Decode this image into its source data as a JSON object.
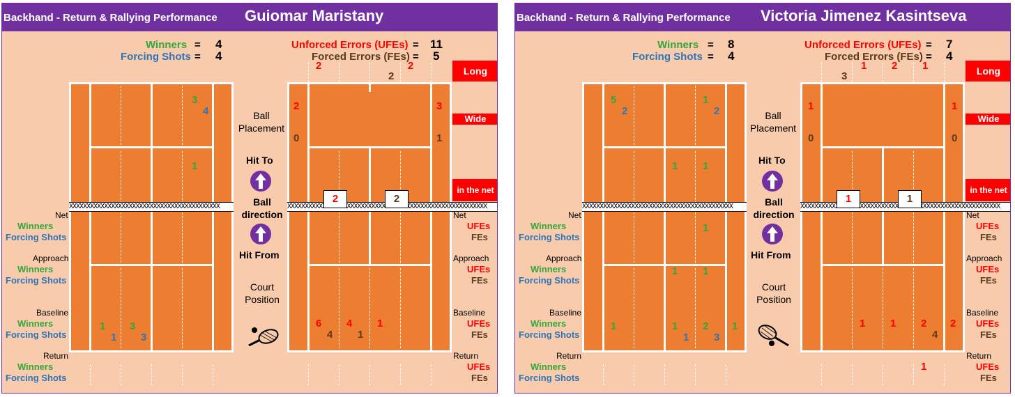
{
  "section_title": "Backhand - Return & Rallying Performance",
  "chart_data": [
    {
      "type": "table",
      "player": "Guiomar Maristany",
      "winners_label": "Winners",
      "winners": "4",
      "forcing_label": "Forcing Shots",
      "forcing": "4",
      "ufe_label": "Unforced Errors (UFEs)",
      "ufe": "11",
      "fe_label": "Forced Errors (FEs)",
      "fe": "5",
      "long_label": "Long",
      "wide_label": "Wide",
      "net_label": "in the net",
      "ball_placement": "Ball Placement",
      "hit_to": "Hit To",
      "ball_direction": "Ball direction",
      "hit_from": "Hit From",
      "court_position": "Court Position",
      "row_net": "Net",
      "row_approach": "Approach",
      "row_baseline": "Baseline",
      "row_return": "Return",
      "row_w": "Winners",
      "row_fs": "Forcing Shots",
      "row_ufe": "UFEs",
      "row_fe": "FEs",
      "left_placement": [
        {
          "v": "3",
          "c": "g"
        },
        {
          "v": "4",
          "c": "b"
        },
        {
          "v": "1",
          "c": "g"
        }
      ],
      "left_position": [
        {
          "v": "1",
          "c": "g"
        },
        {
          "v": "1",
          "c": "b"
        },
        {
          "v": "3",
          "c": "g"
        },
        {
          "v": "3",
          "c": "b"
        }
      ],
      "right_long": [
        {
          "v": "2",
          "c": "r"
        },
        {
          "v": "2",
          "c": "br"
        },
        {
          "v": "2",
          "c": "r"
        }
      ],
      "right_wide": [
        {
          "v": "2",
          "c": "r"
        },
        {
          "v": "0",
          "c": "br"
        },
        {
          "v": "3",
          "c": "r"
        },
        {
          "v": "1",
          "c": "br"
        }
      ],
      "right_net": [
        "2",
        "2"
      ],
      "right_position": [
        {
          "v": "6",
          "c": "r"
        },
        {
          "v": "4",
          "c": "br"
        },
        {
          "v": "4",
          "c": "r"
        },
        {
          "v": "1",
          "c": "br"
        },
        {
          "v": "1",
          "c": "r"
        }
      ]
    },
    {
      "type": "table",
      "player": "Victoria Jimenez Kasintseva",
      "winners_label": "Winners",
      "winners": "8",
      "forcing_label": "Forcing Shots",
      "forcing": "4",
      "ufe_label": "Unforced Errors (UFEs)",
      "ufe": "7",
      "fe_label": "Forced Errors (FEs)",
      "fe": "4",
      "long_label": "Long",
      "wide_label": "Wide",
      "net_label": "in the net",
      "ball_placement": "Ball Placement",
      "hit_to": "Hit To",
      "ball_direction": "Ball direction",
      "hit_from": "Hit From",
      "court_position": "Court Position",
      "row_net": "Net",
      "row_approach": "Approach",
      "row_baseline": "Baseline",
      "row_return": "Return",
      "row_w": "Winners",
      "row_fs": "Forcing Shots",
      "row_ufe": "UFEs",
      "row_fe": "FEs",
      "left_placement": [
        {
          "v": "5",
          "c": "g"
        },
        {
          "v": "2",
          "c": "b"
        },
        {
          "v": "1",
          "c": "g"
        },
        {
          "v": "2",
          "c": "b"
        },
        {
          "v": "1",
          "c": "g"
        },
        {
          "v": "1",
          "c": "g"
        },
        {
          "v": "1",
          "c": "g"
        },
        {
          "v": "1",
          "c": "g"
        },
        {
          "v": "1",
          "c": "g"
        }
      ],
      "left_position": [
        {
          "v": "1",
          "c": "g"
        },
        {
          "v": "1",
          "c": "g"
        },
        {
          "v": "1",
          "c": "b"
        },
        {
          "v": "2",
          "c": "g"
        },
        {
          "v": "3",
          "c": "b"
        },
        {
          "v": "1",
          "c": "g"
        }
      ],
      "right_long": [
        {
          "v": "3",
          "c": "br"
        },
        {
          "v": "1",
          "c": "r"
        },
        {
          "v": "2",
          "c": "r"
        },
        {
          "v": "1",
          "c": "r"
        }
      ],
      "right_wide": [
        {
          "v": "1",
          "c": "r"
        },
        {
          "v": "0",
          "c": "br"
        },
        {
          "v": "1",
          "c": "r"
        },
        {
          "v": "0",
          "c": "br"
        }
      ],
      "right_net": [
        "1",
        "1"
      ],
      "right_position": [
        {
          "v": "1",
          "c": "r"
        },
        {
          "v": "1",
          "c": "r"
        },
        {
          "v": "2",
          "c": "r"
        },
        {
          "v": "4",
          "c": "br"
        },
        {
          "v": "2",
          "c": "r"
        },
        {
          "v": "1",
          "c": "r"
        }
      ]
    }
  ]
}
